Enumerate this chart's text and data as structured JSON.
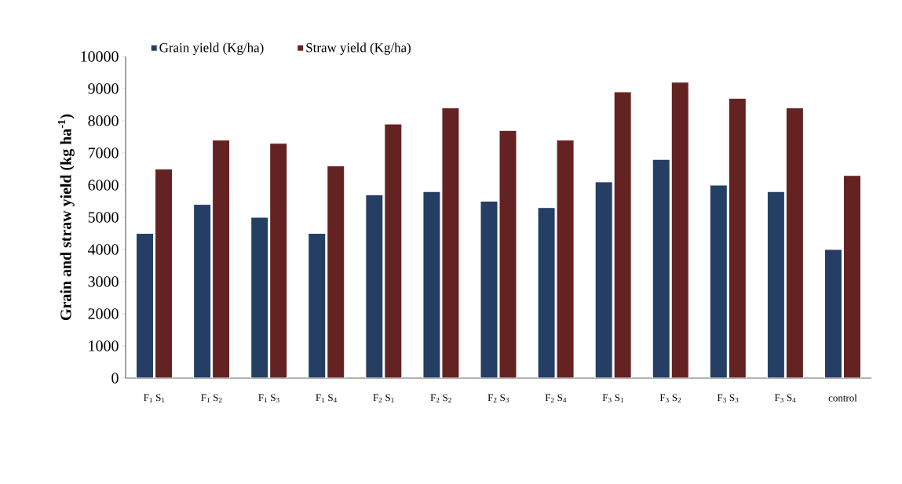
{
  "chart_data": {
    "type": "bar",
    "ylabel": "Grain and straw yield (kg ha$^{-1}$)",
    "categories": [
      "F$_{1}$ S$_{1}$",
      "F$_{1}$ S$_{2}$",
      "F$_{1}$ S$_{3}$",
      "F$_{1}$ S$_{4}$",
      "F$_{2}$ S$_{1}$",
      "F$_{2}$ S$_{2}$",
      "F$_{2}$ S$_{3}$",
      "F$_{2}$ S$_{4}$",
      "F$_{3}$ S$_{1}$",
      "F$_{3}$ S$_{2}$",
      "F$_{3}$ S$_{3}$",
      "F$_{3}$ S$_{4}$",
      "control"
    ],
    "series": [
      {
        "name": "Grain yield (Kg/ha)",
        "color": "#243f63",
        "values": [
          4500,
          5400,
          5000,
          4500,
          5700,
          5800,
          5500,
          5300,
          6100,
          6800,
          6000,
          5800,
          4000
        ]
      },
      {
        "name": "Straw yield  (Kg/ha)",
        "color": "#642322",
        "values": [
          6500,
          7400,
          7300,
          6600,
          7900,
          8400,
          7700,
          7400,
          8900,
          9200,
          8700,
          8400,
          6300
        ]
      }
    ],
    "ylim": [
      0,
      10000
    ],
    "yticks": [
      0,
      1000,
      2000,
      3000,
      4000,
      5000,
      6000,
      7000,
      8000,
      9000,
      10000
    ],
    "legend": "top"
  }
}
